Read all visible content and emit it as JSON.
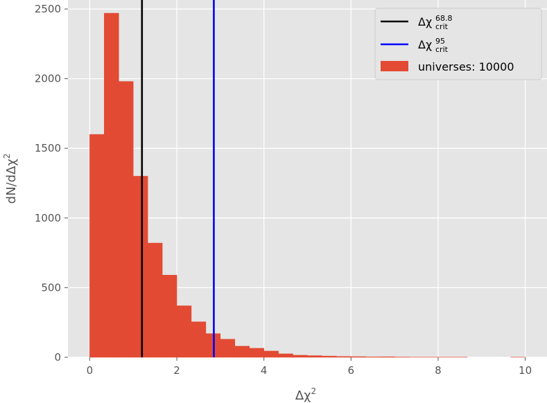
{
  "chart_data": {
    "type": "bar",
    "title": "",
    "xlabel": "Δχ",
    "xlabel_sup": "2",
    "ylabel": "dN/dΔχ",
    "ylabel_sup": "2",
    "xlim": [
      -0.5,
      10.5
    ],
    "ylim": [
      0,
      2500
    ],
    "xticks": [
      0,
      2,
      4,
      6,
      8,
      10
    ],
    "xtick_labels": [
      "0",
      "2",
      "4",
      "6",
      "8",
      "10"
    ],
    "yticks": [
      0,
      500,
      1000,
      1500,
      2000,
      2500
    ],
    "ytick_labels": [
      "0",
      "500",
      "1000",
      "1500",
      "2000",
      "2500"
    ],
    "grid": true,
    "legend_position": "top-right",
    "bin_edges": [
      0,
      0.333,
      0.667,
      1.0,
      1.333,
      1.667,
      2.0,
      2.333,
      2.667,
      3.0,
      3.333,
      3.667,
      4.0,
      4.333,
      4.667,
      5.0,
      5.333,
      5.667,
      6.0,
      6.333,
      6.667,
      7.0,
      7.333,
      7.667,
      8.0,
      8.333,
      8.667,
      9.0,
      9.333,
      9.667,
      10.0
    ],
    "values": [
      1600,
      2470,
      1980,
      1300,
      820,
      590,
      370,
      255,
      170,
      130,
      80,
      65,
      45,
      25,
      15,
      12,
      9,
      6,
      5,
      3,
      4,
      2,
      1,
      1,
      1,
      1,
      0,
      0,
      0,
      1
    ],
    "bar_color": "#E24A33",
    "vlines": [
      {
        "x": 1.2,
        "color": "#000000",
        "label": "Δχ",
        "sup": "68.8",
        "sub": "crit"
      },
      {
        "x": 2.85,
        "color": "#0000ff",
        "label": "Δχ",
        "sup": "95",
        "sub": "crit"
      }
    ],
    "series": [
      {
        "name": "universes: 10000"
      }
    ]
  }
}
